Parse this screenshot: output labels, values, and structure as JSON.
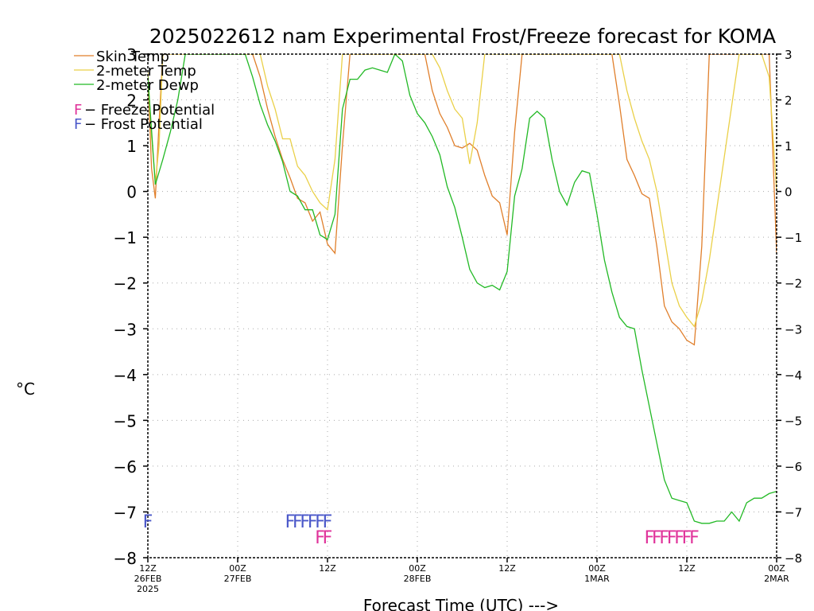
{
  "chart_data": {
    "type": "line",
    "title": "2025022612 nam Experimental Frost/Freeze forecast for KOMA",
    "ylabel": "°C",
    "xlabel": "Forecast Time (UTC) --->",
    "ylim": [
      -8,
      3
    ],
    "xlim": [
      0,
      84
    ],
    "grid": true,
    "legend_position": "top-left",
    "y_ticks": [
      "−8",
      "−7",
      "−6",
      "−5",
      "−4",
      "−3",
      "−2",
      "−1",
      "0",
      "1",
      "2",
      "3"
    ],
    "x_ticks": [
      {
        "hour": 0,
        "label": "12Z",
        "date": "26FEB",
        "year": "2025"
      },
      {
        "hour": 12,
        "label": "00Z",
        "date": "27FEB",
        "year": ""
      },
      {
        "hour": 24,
        "label": "12Z",
        "date": "",
        "year": ""
      },
      {
        "hour": 36,
        "label": "00Z",
        "date": "28FEB",
        "year": ""
      },
      {
        "hour": 48,
        "label": "12Z",
        "date": "",
        "year": ""
      },
      {
        "hour": 60,
        "label": "00Z",
        "date": "1MAR",
        "year": ""
      },
      {
        "hour": 72,
        "label": "12Z",
        "date": "",
        "year": ""
      },
      {
        "hour": 84,
        "label": "00Z",
        "date": "2MAR",
        "year": ""
      }
    ],
    "series": [
      {
        "name": "Skin Temp",
        "color": "#e07f2b",
        "x": [
          0,
          0.5,
          1,
          1.5,
          2,
          14,
          15,
          16,
          17,
          18,
          19,
          20,
          21,
          22,
          23,
          24,
          25,
          26,
          27,
          37,
          38,
          39,
          40,
          41,
          42,
          43,
          44,
          45,
          46,
          47,
          48,
          49,
          50,
          62,
          63,
          64,
          65,
          66,
          67,
          68,
          69,
          70,
          71,
          72,
          73,
          74,
          75,
          83,
          84
        ],
        "y": [
          2.5,
          0.5,
          -0.15,
          1.5,
          3,
          3,
          2.5,
          1.8,
          1.2,
          0.7,
          0.3,
          -0.15,
          -0.25,
          -0.65,
          -0.45,
          -1.15,
          -1.35,
          1.0,
          3,
          3,
          2.2,
          1.7,
          1.4,
          1.0,
          0.95,
          1.05,
          0.9,
          0.35,
          -0.1,
          -0.25,
          -0.95,
          1.3,
          3,
          3,
          1.9,
          0.7,
          0.35,
          -0.05,
          -0.15,
          -1.2,
          -2.5,
          -2.85,
          -3.0,
          -3.25,
          -3.35,
          -1.2,
          3,
          3,
          -1.35
        ]
      },
      {
        "name": "2-meter Temp",
        "color": "#ead048",
        "x": [
          0,
          0.5,
          1,
          1.5,
          2,
          15,
          16,
          17,
          18,
          19,
          20,
          21,
          22,
          23,
          24,
          25,
          26,
          27,
          38,
          39,
          40,
          41,
          42,
          43,
          44,
          45,
          46,
          47,
          48,
          49,
          50,
          63,
          64,
          65,
          66,
          67,
          68,
          69,
          70,
          71,
          72,
          73,
          74,
          75,
          79,
          80,
          81,
          82,
          83,
          84
        ],
        "y": [
          2.6,
          1.2,
          0.2,
          1.0,
          3,
          3,
          2.3,
          1.8,
          1.15,
          1.15,
          0.55,
          0.35,
          0.0,
          -0.25,
          -0.4,
          0.7,
          3,
          3,
          3,
          2.7,
          2.2,
          1.8,
          1.6,
          0.6,
          1.5,
          3,
          3,
          3,
          3,
          3,
          3,
          3,
          2.2,
          1.6,
          1.1,
          0.7,
          0.0,
          -1.0,
          -2.0,
          -2.5,
          -2.75,
          -2.95,
          -2.4,
          -1.5,
          3,
          3,
          3,
          3,
          2.5,
          0.0
        ]
      },
      {
        "name": "2-meter Dewp",
        "color": "#22b925",
        "x": [
          0,
          1,
          2,
          3,
          4,
          5,
          13,
          14,
          15,
          16,
          17,
          18,
          19,
          20,
          21,
          22,
          23,
          24,
          25,
          26,
          27,
          28,
          29,
          30,
          31,
          32,
          33,
          34,
          35,
          36,
          37,
          38,
          39,
          40,
          41,
          42,
          43,
          44,
          45,
          46,
          47,
          48,
          49,
          50,
          51,
          52,
          53,
          54,
          55,
          56,
          57,
          58,
          59,
          60,
          61,
          62,
          63,
          64,
          65,
          66,
          67,
          68,
          69,
          70,
          71,
          72,
          73,
          74,
          75,
          76,
          77,
          78,
          79,
          80,
          81,
          82,
          83,
          84
        ],
        "y": [
          2.5,
          0.15,
          0.7,
          1.3,
          2.0,
          3,
          3,
          2.5,
          1.9,
          1.45,
          1.1,
          0.65,
          0.0,
          -0.1,
          -0.4,
          -0.4,
          -0.95,
          -1.05,
          -0.5,
          1.8,
          2.45,
          2.45,
          2.65,
          2.7,
          2.65,
          2.6,
          3,
          2.85,
          2.1,
          1.7,
          1.5,
          1.2,
          0.8,
          0.1,
          -0.35,
          -1.0,
          -1.7,
          -2.0,
          -2.1,
          -2.05,
          -2.15,
          -1.75,
          -0.1,
          0.5,
          1.6,
          1.75,
          1.6,
          0.7,
          0.0,
          -0.3,
          0.2,
          0.45,
          0.4,
          -0.5,
          -1.5,
          -2.2,
          -2.75,
          -2.95,
          -3.0,
          -3.9,
          -4.7,
          -5.5,
          -6.3,
          -6.7,
          -6.75,
          -6.8,
          -7.2,
          -7.25,
          -7.25,
          -7.2,
          -7.2,
          -7.0,
          -7.2,
          -6.8,
          -6.7,
          -6.7,
          -6.6,
          -6.55
        ]
      }
    ],
    "legend": [
      {
        "label": "Skin Temp",
        "color": "#e07f2b"
      },
      {
        "label": "2-meter Temp",
        "color": "#ead048"
      },
      {
        "label": "2-meter Dewp",
        "color": "#22b925"
      }
    ],
    "markers_legend": [
      {
        "symbol": "F",
        "label": " − Freeze Potential",
        "color": "#e0329a"
      },
      {
        "symbol": "F",
        "label": " − Frost Potential",
        "color": "#4a57c9"
      }
    ],
    "frost_markers": {
      "color": "#4a57c9",
      "y": -7.2,
      "hours": [
        0,
        19,
        20,
        21,
        22,
        23,
        24
      ]
    },
    "freeze_markers": {
      "color": "#e0329a",
      "y": -7.55,
      "hours": [
        23,
        24,
        67,
        68,
        69,
        70,
        71,
        72,
        73
      ]
    }
  }
}
